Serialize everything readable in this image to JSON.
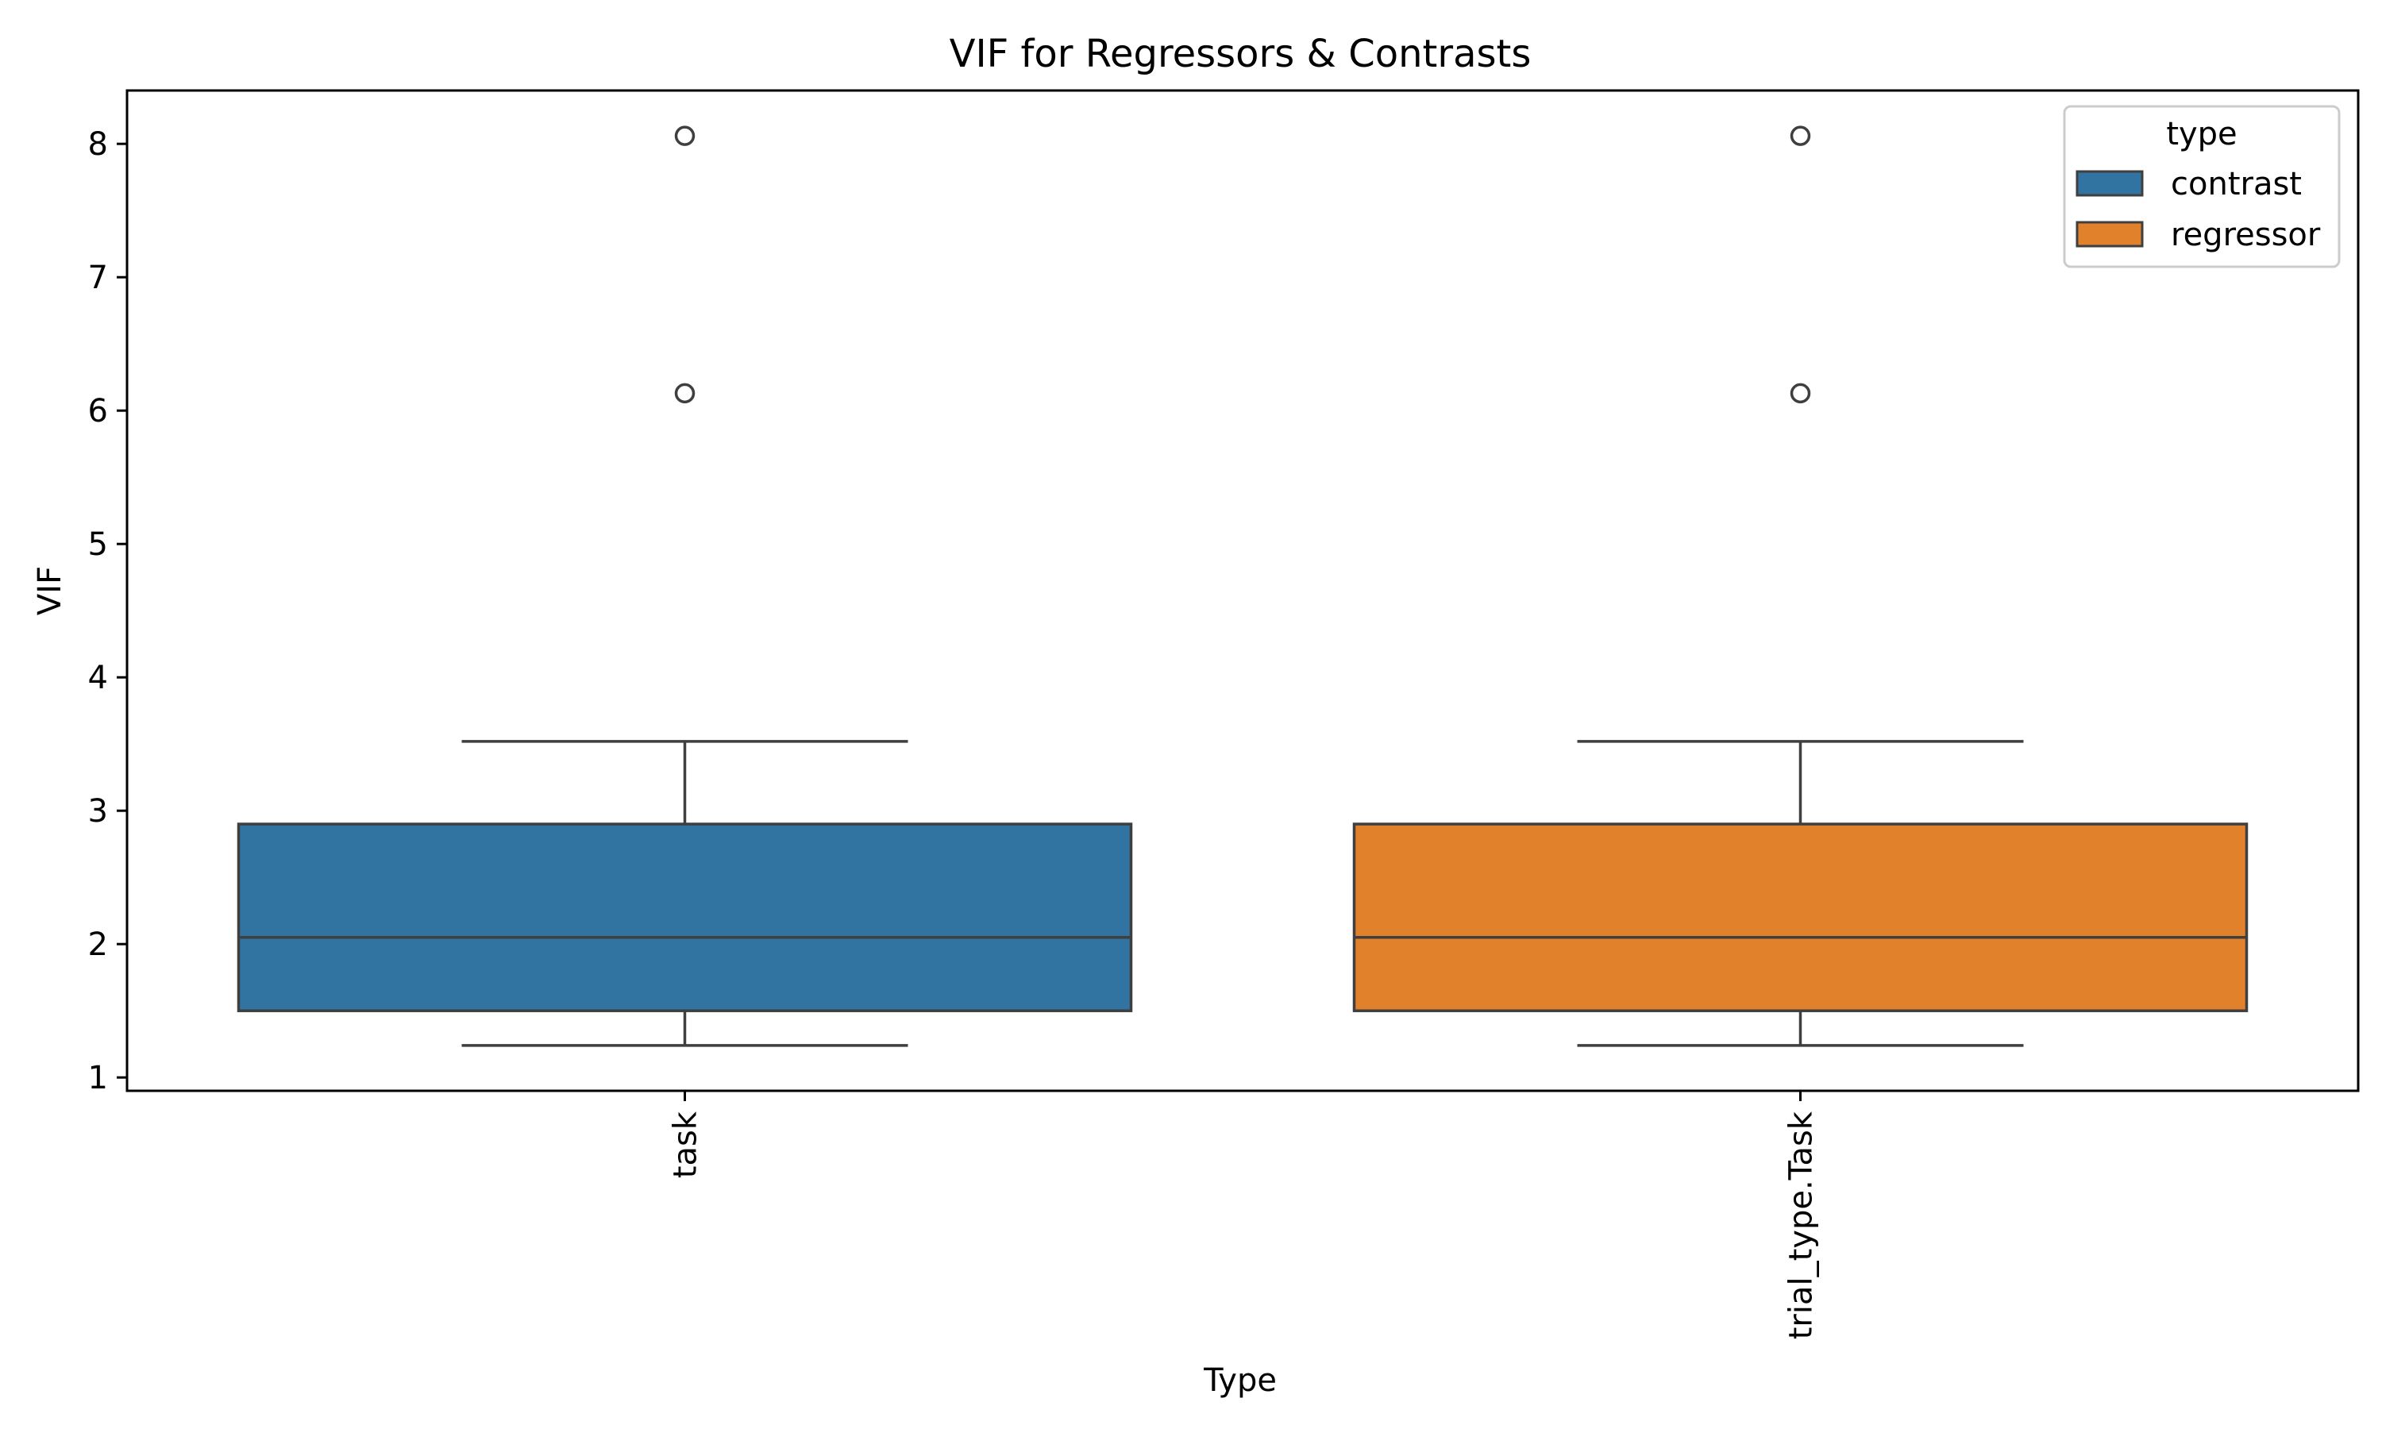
{
  "chart_data": {
    "type": "box",
    "title": "VIF for Regressors & Contrasts",
    "xlabel": "Type",
    "ylabel": "VIF",
    "ylim": [
      0.9,
      8.4
    ],
    "yticks": [
      1,
      2,
      3,
      4,
      5,
      6,
      7,
      8
    ],
    "grid": false,
    "categories": [
      "task",
      "trial_type.Task"
    ],
    "legend": {
      "title": "type",
      "placement": "top-right",
      "entries": [
        {
          "label": "contrast",
          "color": "#3274a1"
        },
        {
          "label": "regressor",
          "color": "#e1812c"
        }
      ]
    },
    "boxes": [
      {
        "category": "task",
        "group": "contrast",
        "color": "#3274a1",
        "whisker_low": 1.24,
        "q1": 1.5,
        "median": 2.05,
        "q3": 2.9,
        "whisker_high": 3.52,
        "outliers": [
          6.13,
          8.06
        ]
      },
      {
        "category": "trial_type.Task",
        "group": "regressor",
        "color": "#e1812c",
        "whisker_low": 1.24,
        "q1": 1.5,
        "median": 2.05,
        "q3": 2.9,
        "whisker_high": 3.52,
        "outliers": [
          6.13,
          8.06
        ]
      }
    ]
  }
}
